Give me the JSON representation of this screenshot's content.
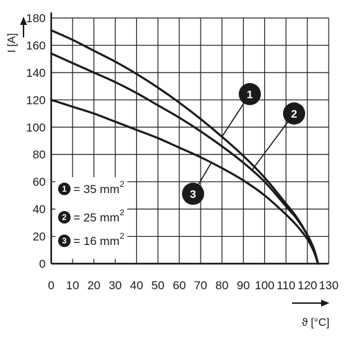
{
  "chart_data": {
    "type": "line",
    "xlabel": "ϑ [°C]",
    "ylabel": "I [A]",
    "xlim": [
      0,
      130
    ],
    "ylim": [
      0,
      180
    ],
    "xticks": [
      "0",
      "10",
      "20",
      "30",
      "40",
      "50",
      "60",
      "70",
      "80",
      "90",
      "100",
      "110",
      "120",
      "130"
    ],
    "yticks": [
      "0",
      "20",
      "40",
      "60",
      "80",
      "100",
      "120",
      "140",
      "160",
      "180"
    ],
    "grid": true,
    "series": [
      {
        "name": "1",
        "x": [
          0,
          10,
          20,
          30,
          40,
          50,
          60,
          70,
          80,
          90,
          100,
          110,
          115,
          120,
          123,
          125
        ],
        "y": [
          171,
          164,
          156,
          148,
          139,
          129,
          118,
          106,
          93,
          79,
          63,
          44,
          34,
          21,
          11,
          0
        ]
      },
      {
        "name": "2",
        "x": [
          0,
          10,
          20,
          30,
          40,
          50,
          60,
          70,
          80,
          90,
          100,
          110,
          115,
          120,
          123,
          125
        ],
        "y": [
          154,
          147,
          140,
          133,
          125,
          116,
          107,
          97,
          86,
          74,
          60,
          42,
          33,
          21,
          11,
          0
        ]
      },
      {
        "name": "3",
        "x": [
          0,
          10,
          20,
          30,
          40,
          50,
          60,
          70,
          80,
          90,
          100,
          110,
          115,
          120,
          123,
          125
        ],
        "y": [
          120,
          115,
          110,
          104,
          98,
          92,
          85,
          78,
          70,
          61,
          50,
          36,
          28,
          18,
          9,
          0
        ]
      }
    ],
    "legend": {
      "placement": "bottom-left",
      "entries": [
        {
          "badge": "1",
          "text": "= 35 mm",
          "sup": "2"
        },
        {
          "badge": "2",
          "text": "= 25 mm",
          "sup": "2"
        },
        {
          "badge": "3",
          "text": "= 16 mm",
          "sup": "2"
        }
      ]
    },
    "annotations": [
      {
        "label": "1",
        "series": "1",
        "at_x": 80
      },
      {
        "label": "2",
        "series": "2",
        "at_x": 94
      },
      {
        "label": "3",
        "series": "3",
        "at_x": 75
      }
    ]
  },
  "colors": {
    "line": "#1a1a1a",
    "grid": "#1a1a1a",
    "badge": "#1a1a1a",
    "background": "#ffffff"
  }
}
